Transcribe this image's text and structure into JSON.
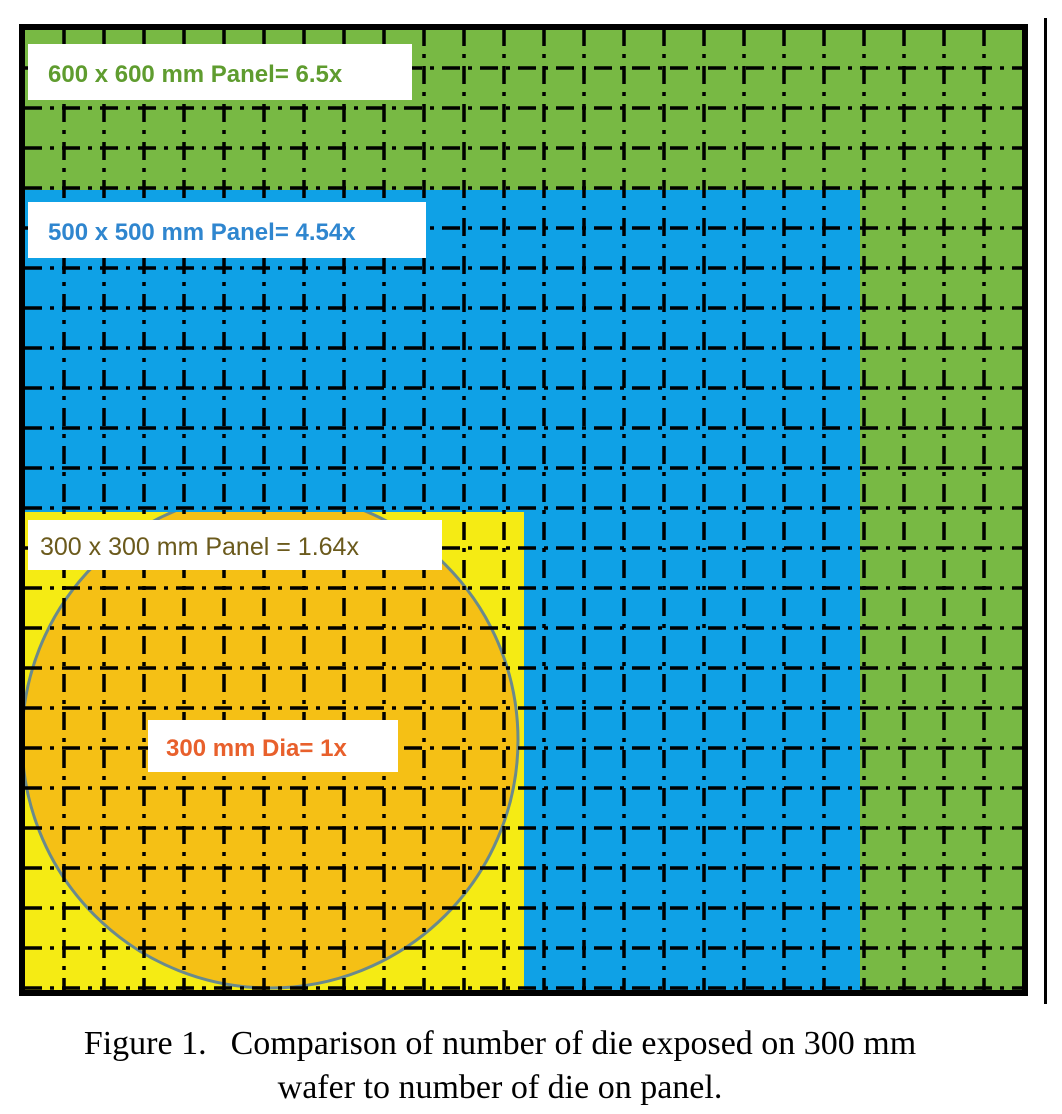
{
  "figure": {
    "panels": [
      {
        "id": "panel-600",
        "label": "600 x 600 mm Panel= 6.5x",
        "fill": "#78b944",
        "label_color": "#5f9c2f"
      },
      {
        "id": "panel-500",
        "label": "500 x 500 mm Panel= 4.54x",
        "fill": "#0fa1e6",
        "label_color": "#2f86cf"
      },
      {
        "id": "panel-300",
        "label": "300 x 300 mm Panel = 1.64x",
        "fill": "#f5eb14",
        "label_color": "#6b5a1c"
      }
    ],
    "wafer": {
      "label": "300 mm Dia= 1x",
      "fill": "#f4bc16",
      "label_color": "#e8602c",
      "edge_color": "#6a8a8c"
    },
    "grid_color": "#000000",
    "border_color": "#000000"
  },
  "caption": {
    "number": "Figure 1.",
    "line1": "Comparison of number of die exposed on 300 mm",
    "line2": "wafer to number of die on panel."
  }
}
